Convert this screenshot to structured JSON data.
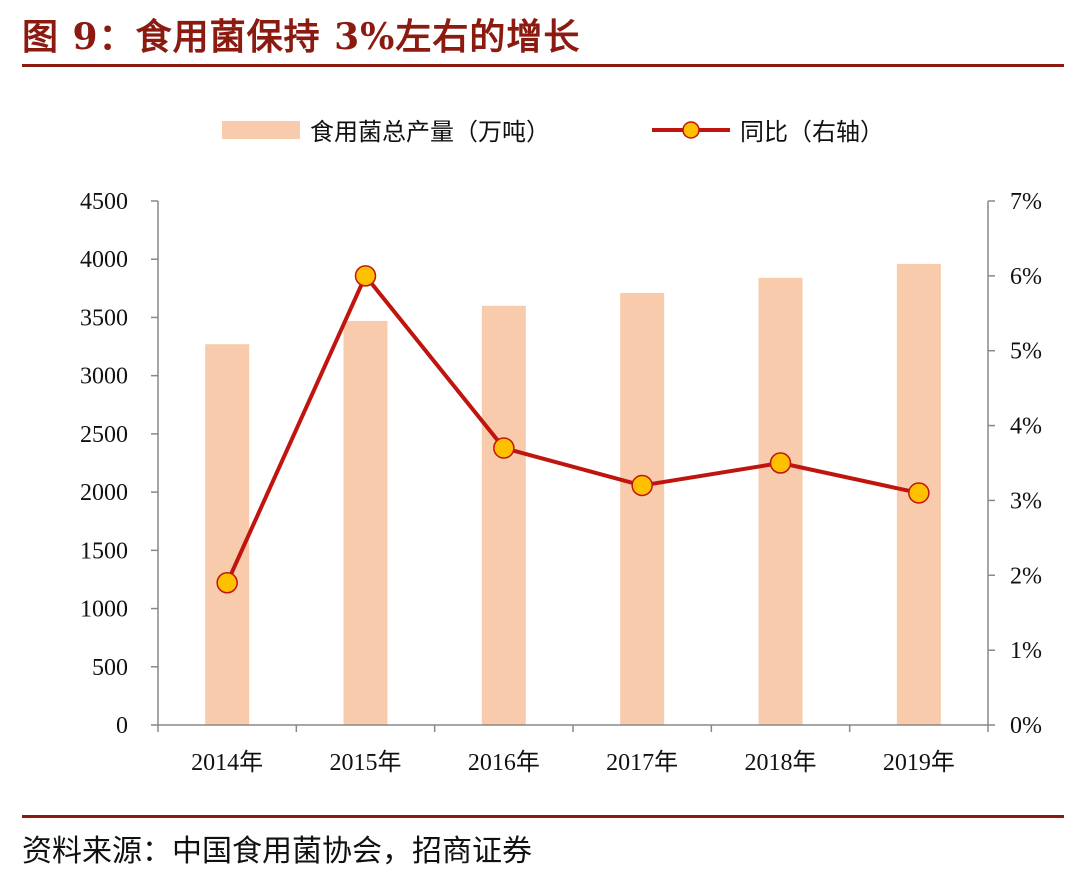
{
  "figure": {
    "title": "图 9：食用菌保持 3%左右的增长",
    "source": "资料来源：中国食用菌协会，招商证券"
  },
  "colors": {
    "title": "#8b1a10",
    "rule": "#8b1a10",
    "bar": "#f7cbab",
    "line": "#c0140f",
    "marker_fill": "#ffc000",
    "marker_edge": "#c0140f",
    "axis": "#888888"
  },
  "chart_data": {
    "type": "bar",
    "title": "",
    "categories": [
      "2014年",
      "2015年",
      "2016年",
      "2017年",
      "2018年",
      "2019年"
    ],
    "series": [
      {
        "name": "食用菌总产量（万吨）",
        "type": "bar",
        "axis": "left",
        "values": [
          3270,
          3470,
          3600,
          3710,
          3840,
          3960
        ]
      },
      {
        "name": "同比（右轴）",
        "type": "line",
        "axis": "right",
        "values": [
          1.9,
          6.0,
          3.7,
          3.2,
          3.5,
          3.1
        ]
      }
    ],
    "y_left": {
      "min": 0,
      "max": 4500,
      "ticks": [
        "0",
        "500",
        "1000",
        "1500",
        "2000",
        "2500",
        "3000",
        "3500",
        "4000",
        "4500"
      ]
    },
    "y_right": {
      "min": 0,
      "max": 7,
      "ticks": [
        "0%",
        "1%",
        "2%",
        "3%",
        "4%",
        "5%",
        "6%",
        "7%"
      ]
    },
    "grid": false,
    "legend_position": "top-center"
  }
}
